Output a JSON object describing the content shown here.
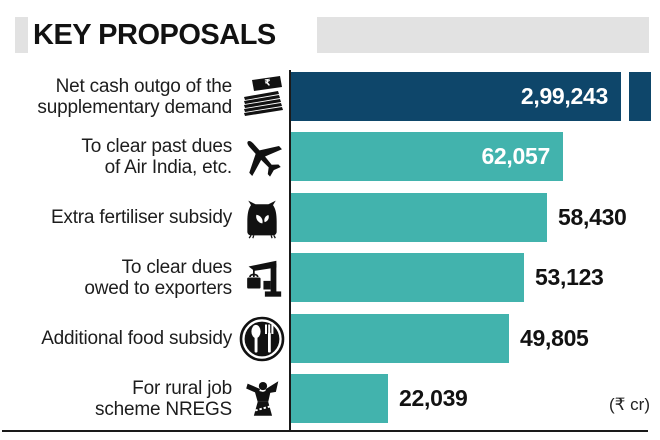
{
  "header": {
    "title": "KEY PROPOSALS"
  },
  "unit_label": "(₹ cr)",
  "colors": {
    "navy": "#0e466a",
    "teal": "#42b3ad",
    "header_gray": "#e2e2e2",
    "text": "#1d1d1d"
  },
  "chart_data": {
    "type": "bar",
    "orientation": "horizontal",
    "title": "KEY PROPOSALS",
    "unit": "₹ cr",
    "categories": [
      "Net cash outgo of the supplementary demand",
      "To clear past dues of Air India, etc.",
      "Extra fertiliser subsidy",
      "To clear dues owed to exporters",
      "Additional food subsidy",
      "For rural job scheme NREGS"
    ],
    "values": [
      299243,
      62057,
      58430,
      53123,
      49805,
      22039
    ],
    "value_labels": [
      "2,99,243",
      "62,057",
      "58,430",
      "53,123",
      "49,805",
      "22,039"
    ],
    "bar_colors": [
      "#0e466a",
      "#42b3ad",
      "#42b3ad",
      "#42b3ad",
      "#42b3ad",
      "#42b3ad"
    ],
    "icons": [
      "cash-stack",
      "airplane",
      "fertiliser-sack",
      "crane-cargo",
      "fork-spoon",
      "worker"
    ],
    "notes": "First bar is truncated with a broken-bar segment at the right edge; first two value labels are printed white inside the bars, the rest black outside.",
    "legend": "none",
    "grid": "off"
  },
  "rows": [
    {
      "label_line1": "Net cash outgo of the",
      "label_line2": "supplementary demand",
      "value": 299243,
      "value_label": "2,99,243",
      "color": "#0e466a",
      "broken": true
    },
    {
      "label_line1": "To clear past dues",
      "label_line2": "of Air India, etc.",
      "value": 62057,
      "value_label": "62,057",
      "color": "#42b3ad",
      "broken": false
    },
    {
      "label_line1": "Extra fertiliser subsidy",
      "label_line2": "",
      "value": 58430,
      "value_label": "58,430",
      "color": "#42b3ad",
      "broken": false
    },
    {
      "label_line1": "To clear dues",
      "label_line2": "owed to exporters",
      "value": 53123,
      "value_label": "53,123",
      "color": "#42b3ad",
      "broken": false
    },
    {
      "label_line1": "Additional food subsidy",
      "label_line2": "",
      "value": 49805,
      "value_label": "49,805",
      "color": "#42b3ad",
      "broken": false
    },
    {
      "label_line1": "For rural job",
      "label_line2": "scheme NREGS",
      "value": 22039,
      "value_label": "22,039",
      "color": "#42b3ad",
      "broken": false
    }
  ]
}
